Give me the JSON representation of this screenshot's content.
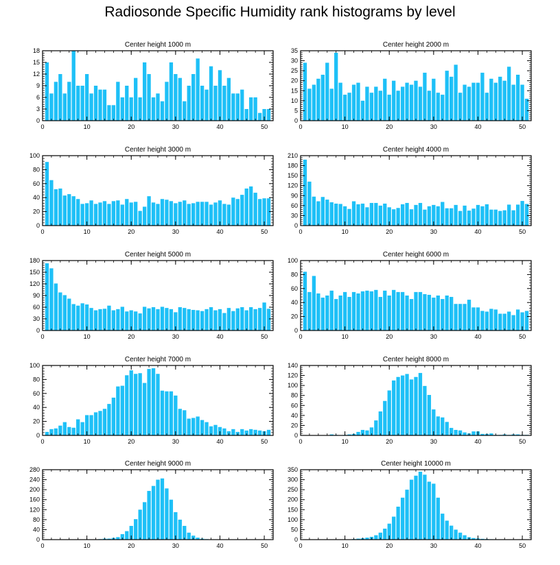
{
  "title": "Radiosonde Specific Humidity rank histograms by level",
  "colors": {
    "bar": "#1ec0f7",
    "axis": "#000000",
    "background": "#ffffff"
  },
  "chart_data": [
    {
      "type": "bar",
      "title": "Center height 1000 m",
      "xlim": [
        0,
        52
      ],
      "ylim": [
        0,
        18
      ],
      "xticks": [
        0,
        10,
        20,
        30,
        40,
        50
      ],
      "yticks": [
        0,
        3,
        6,
        9,
        12,
        15,
        18
      ],
      "x": [
        1,
        2,
        3,
        4,
        5,
        6,
        7,
        8,
        9,
        10,
        11,
        12,
        13,
        14,
        15,
        16,
        17,
        18,
        19,
        20,
        21,
        22,
        23,
        24,
        25,
        26,
        27,
        28,
        29,
        30,
        31,
        32,
        33,
        34,
        35,
        36,
        37,
        38,
        39,
        40,
        41,
        42,
        43,
        44,
        45,
        46,
        47,
        48,
        49,
        50,
        51
      ],
      "values": [
        15,
        7,
        10,
        12,
        7,
        10,
        18,
        9,
        9,
        12,
        7,
        9,
        8,
        8,
        4,
        4,
        10,
        6,
        9,
        6,
        11,
        6,
        15,
        12,
        6,
        7,
        5,
        10,
        15,
        12,
        11,
        5,
        9,
        12,
        16,
        9,
        8,
        14,
        9,
        13,
        9,
        11,
        7,
        7,
        8,
        3,
        6,
        6,
        2,
        3,
        3
      ]
    },
    {
      "type": "bar",
      "title": "Center height 2000 m",
      "xlim": [
        0,
        52
      ],
      "ylim": [
        0,
        35
      ],
      "xticks": [
        0,
        10,
        20,
        30,
        40,
        50
      ],
      "yticks": [
        0,
        5,
        10,
        15,
        20,
        25,
        30,
        35
      ],
      "x": [
        1,
        2,
        3,
        4,
        5,
        6,
        7,
        8,
        9,
        10,
        11,
        12,
        13,
        14,
        15,
        16,
        17,
        18,
        19,
        20,
        21,
        22,
        23,
        24,
        25,
        26,
        27,
        28,
        29,
        30,
        31,
        32,
        33,
        34,
        35,
        36,
        37,
        38,
        39,
        40,
        41,
        42,
        43,
        44,
        45,
        46,
        47,
        48,
        49,
        50,
        51
      ],
      "values": [
        29,
        16,
        18,
        21,
        23,
        29,
        16,
        34,
        19,
        13,
        14,
        18,
        19,
        10,
        17,
        14,
        17,
        15,
        21,
        13,
        20,
        15,
        17,
        19,
        18,
        20,
        17,
        24,
        15,
        21,
        14,
        13,
        25,
        22,
        28,
        14,
        18,
        17,
        19,
        19,
        24,
        14,
        21,
        19,
        22,
        20,
        27,
        18,
        23,
        18,
        11
      ]
    },
    {
      "type": "bar",
      "title": "Center height 3000 m",
      "xlim": [
        0,
        52
      ],
      "ylim": [
        0,
        100
      ],
      "xticks": [
        0,
        10,
        20,
        30,
        40,
        50
      ],
      "yticks": [
        0,
        20,
        40,
        60,
        80,
        100
      ],
      "x": [
        1,
        2,
        3,
        4,
        5,
        6,
        7,
        8,
        9,
        10,
        11,
        12,
        13,
        14,
        15,
        16,
        17,
        18,
        19,
        20,
        21,
        22,
        23,
        24,
        25,
        26,
        27,
        28,
        29,
        30,
        31,
        32,
        33,
        34,
        35,
        36,
        37,
        38,
        39,
        40,
        41,
        42,
        43,
        44,
        45,
        46,
        47,
        48,
        49,
        50,
        51
      ],
      "values": [
        91,
        65,
        52,
        53,
        43,
        45,
        42,
        38,
        31,
        32,
        36,
        31,
        33,
        35,
        31,
        35,
        36,
        30,
        38,
        33,
        34,
        21,
        27,
        42,
        33,
        31,
        38,
        37,
        35,
        32,
        34,
        36,
        31,
        32,
        34,
        34,
        34,
        30,
        33,
        36,
        31,
        30,
        40,
        38,
        44,
        53,
        56,
        47,
        38,
        39,
        39
      ]
    },
    {
      "type": "bar",
      "title": "Center height 4000 m",
      "xlim": [
        0,
        52
      ],
      "ylim": [
        0,
        210
      ],
      "xticks": [
        0,
        10,
        20,
        30,
        40,
        50
      ],
      "yticks": [
        0,
        30,
        60,
        90,
        120,
        150,
        180,
        210
      ],
      "x": [
        1,
        2,
        3,
        4,
        5,
        6,
        7,
        8,
        9,
        10,
        11,
        12,
        13,
        14,
        15,
        16,
        17,
        18,
        19,
        20,
        21,
        22,
        23,
        24,
        25,
        26,
        27,
        28,
        29,
        30,
        31,
        32,
        33,
        34,
        35,
        36,
        37,
        38,
        39,
        40,
        41,
        42,
        43,
        44,
        45,
        46,
        47,
        48,
        49,
        50,
        51
      ],
      "values": [
        198,
        132,
        87,
        73,
        86,
        78,
        70,
        66,
        65,
        58,
        50,
        73,
        64,
        66,
        55,
        68,
        68,
        60,
        66,
        55,
        49,
        53,
        64,
        68,
        49,
        62,
        68,
        48,
        58,
        62,
        58,
        71,
        52,
        52,
        62,
        44,
        60,
        45,
        51,
        62,
        58,
        64,
        48,
        48,
        44,
        46,
        63,
        46,
        63,
        74,
        65
      ]
    },
    {
      "type": "bar",
      "title": "Center height 5000 m",
      "xlim": [
        0,
        52
      ],
      "ylim": [
        0,
        180
      ],
      "xticks": [
        0,
        10,
        20,
        30,
        40,
        50
      ],
      "yticks": [
        0,
        30,
        60,
        90,
        120,
        150,
        180
      ],
      "x": [
        1,
        2,
        3,
        4,
        5,
        6,
        7,
        8,
        9,
        10,
        11,
        12,
        13,
        14,
        15,
        16,
        17,
        18,
        19,
        20,
        21,
        22,
        23,
        24,
        25,
        26,
        27,
        28,
        29,
        30,
        31,
        32,
        33,
        34,
        35,
        36,
        37,
        38,
        39,
        40,
        41,
        42,
        43,
        44,
        45,
        46,
        47,
        48,
        49,
        50,
        51
      ],
      "values": [
        173,
        160,
        121,
        98,
        91,
        82,
        68,
        64,
        70,
        67,
        58,
        52,
        55,
        56,
        64,
        52,
        55,
        61,
        49,
        52,
        49,
        44,
        61,
        57,
        60,
        55,
        61,
        58,
        55,
        47,
        60,
        58,
        55,
        53,
        52,
        50,
        55,
        60,
        52,
        55,
        45,
        58,
        50,
        57,
        60,
        52,
        60,
        55,
        58,
        72,
        56
      ]
    },
    {
      "type": "bar",
      "title": "Center height 6000 m",
      "xlim": [
        0,
        52
      ],
      "ylim": [
        0,
        100
      ],
      "xticks": [
        0,
        10,
        20,
        30,
        40,
        50
      ],
      "yticks": [
        0,
        20,
        40,
        60,
        80,
        100
      ],
      "x": [
        1,
        2,
        3,
        4,
        5,
        6,
        7,
        8,
        9,
        10,
        11,
        12,
        13,
        14,
        15,
        16,
        17,
        18,
        19,
        20,
        21,
        22,
        23,
        24,
        25,
        26,
        27,
        28,
        29,
        30,
        31,
        32,
        33,
        34,
        35,
        36,
        37,
        38,
        39,
        40,
        41,
        42,
        43,
        44,
        45,
        46,
        47,
        48,
        49,
        50,
        51
      ],
      "values": [
        84,
        55,
        78,
        53,
        47,
        50,
        57,
        45,
        50,
        55,
        48,
        55,
        53,
        56,
        57,
        56,
        58,
        48,
        57,
        50,
        58,
        55,
        55,
        50,
        45,
        55,
        55,
        52,
        51,
        47,
        50,
        45,
        50,
        48,
        38,
        38,
        38,
        44,
        33,
        33,
        28,
        27,
        31,
        30,
        24,
        24,
        27,
        22,
        30,
        26,
        28
      ]
    },
    {
      "type": "bar",
      "title": "Center height 7000 m",
      "xlim": [
        0,
        52
      ],
      "ylim": [
        0,
        100
      ],
      "xticks": [
        0,
        10,
        20,
        30,
        40,
        50
      ],
      "yticks": [
        0,
        20,
        40,
        60,
        80,
        100
      ],
      "x": [
        1,
        2,
        3,
        4,
        5,
        6,
        7,
        8,
        9,
        10,
        11,
        12,
        13,
        14,
        15,
        16,
        17,
        18,
        19,
        20,
        21,
        22,
        23,
        24,
        25,
        26,
        27,
        28,
        29,
        30,
        31,
        32,
        33,
        34,
        35,
        36,
        37,
        38,
        39,
        40,
        41,
        42,
        43,
        44,
        45,
        46,
        47,
        48,
        49,
        50,
        51
      ],
      "values": [
        5,
        9,
        10,
        14,
        19,
        12,
        11,
        23,
        19,
        29,
        29,
        33,
        35,
        38,
        45,
        54,
        70,
        71,
        86,
        93,
        88,
        89,
        75,
        95,
        96,
        88,
        64,
        63,
        63,
        57,
        38,
        36,
        24,
        25,
        27,
        22,
        19,
        13,
        15,
        12,
        10,
        6,
        9,
        5,
        9,
        7,
        9,
        8,
        7,
        6,
        8
      ]
    },
    {
      "type": "bar",
      "title": "Center height 8000 m",
      "xlim": [
        0,
        52
      ],
      "ylim": [
        0,
        140
      ],
      "xticks": [
        0,
        10,
        20,
        30,
        40,
        50
      ],
      "yticks": [
        0,
        20,
        40,
        60,
        80,
        100,
        120,
        140
      ],
      "x": [
        1,
        2,
        3,
        4,
        5,
        6,
        7,
        8,
        9,
        10,
        11,
        12,
        13,
        14,
        15,
        16,
        17,
        18,
        19,
        20,
        21,
        22,
        23,
        24,
        25,
        26,
        27,
        28,
        29,
        30,
        31,
        32,
        33,
        34,
        35,
        36,
        37,
        38,
        39,
        40,
        41,
        42,
        43,
        44,
        45,
        46,
        47,
        48,
        49,
        50,
        51
      ],
      "values": [
        0,
        0,
        0,
        0,
        0,
        0,
        2,
        1,
        0,
        1,
        2,
        3,
        7,
        11,
        10,
        16,
        30,
        48,
        69,
        90,
        110,
        117,
        120,
        123,
        112,
        117,
        125,
        99,
        81,
        52,
        38,
        36,
        27,
        15,
        11,
        10,
        6,
        4,
        8,
        8,
        3,
        3,
        4,
        1,
        1,
        2,
        1,
        2,
        2,
        1,
        1
      ]
    },
    {
      "type": "bar",
      "title": "Center height 9000 m",
      "xlim": [
        0,
        52
      ],
      "ylim": [
        0,
        280
      ],
      "xticks": [
        0,
        10,
        20,
        30,
        40,
        50
      ],
      "yticks": [
        0,
        40,
        80,
        120,
        160,
        200,
        240,
        280
      ],
      "x": [
        1,
        2,
        3,
        4,
        5,
        6,
        7,
        8,
        9,
        10,
        11,
        12,
        13,
        14,
        15,
        16,
        17,
        18,
        19,
        20,
        21,
        22,
        23,
        24,
        25,
        26,
        27,
        28,
        29,
        30,
        31,
        32,
        33,
        34,
        35,
        36,
        37,
        38,
        39,
        40,
        41,
        42,
        43,
        44,
        45,
        46,
        47,
        48,
        49,
        50,
        51
      ],
      "values": [
        0,
        0,
        0,
        0,
        0,
        0,
        0,
        0,
        0,
        0,
        0,
        1,
        2,
        4,
        4,
        7,
        10,
        22,
        34,
        55,
        82,
        120,
        150,
        195,
        215,
        240,
        245,
        205,
        160,
        110,
        80,
        55,
        28,
        16,
        8,
        4,
        2,
        1,
        1,
        1,
        0,
        0,
        0,
        0,
        0,
        0,
        0,
        0,
        0,
        0,
        0
      ]
    },
    {
      "type": "bar",
      "title": "Center height 10000 m",
      "xlim": [
        0,
        52
      ],
      "ylim": [
        0,
        350
      ],
      "xticks": [
        0,
        10,
        20,
        30,
        40,
        50
      ],
      "yticks": [
        0,
        50,
        100,
        150,
        200,
        250,
        300,
        350
      ],
      "x": [
        1,
        2,
        3,
        4,
        5,
        6,
        7,
        8,
        9,
        10,
        11,
        12,
        13,
        14,
        15,
        16,
        17,
        18,
        19,
        20,
        21,
        22,
        23,
        24,
        25,
        26,
        27,
        28,
        29,
        30,
        31,
        32,
        33,
        34,
        35,
        36,
        37,
        38,
        39,
        40,
        41,
        42,
        43,
        44,
        45,
        46,
        47,
        48,
        49,
        50,
        51
      ],
      "values": [
        0,
        0,
        0,
        0,
        0,
        0,
        0,
        0,
        0,
        0,
        0,
        3,
        5,
        7,
        10,
        14,
        22,
        35,
        55,
        80,
        115,
        165,
        210,
        250,
        300,
        320,
        340,
        325,
        290,
        280,
        210,
        130,
        95,
        70,
        50,
        35,
        22,
        12,
        8,
        6,
        4,
        3,
        2,
        1,
        1,
        0,
        0,
        0,
        0,
        0,
        0
      ]
    }
  ]
}
